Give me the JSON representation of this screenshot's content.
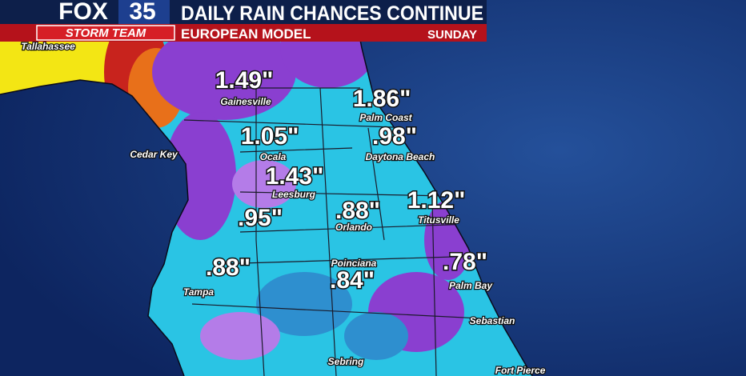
{
  "header": {
    "brand": "FOX",
    "channel": "35",
    "team": "STORM TEAM",
    "title": "DAILY RAIN CHANCES CONTINUE",
    "subtitle": "EUROPEAN MODEL",
    "day": "SUNDAY"
  },
  "cities": [
    "Tallahassee",
    "Gainesville",
    "Palm Coast",
    "Cedar Key",
    "Ocala",
    "Daytona Beach",
    "Leesburg",
    "Orlando",
    "Titusville",
    "Poinciana",
    "Tampa",
    "Palm Bay",
    "Sebastian",
    "Sebring",
    "Fort Pierce"
  ],
  "rain_totals": [
    "1.49\"",
    "1.86\"",
    "1.05\"",
    ".98\"",
    "1.43\"",
    "1.12\"",
    ".88\"",
    ".95\"",
    ".88\"",
    ".78\"",
    ".84\""
  ]
}
